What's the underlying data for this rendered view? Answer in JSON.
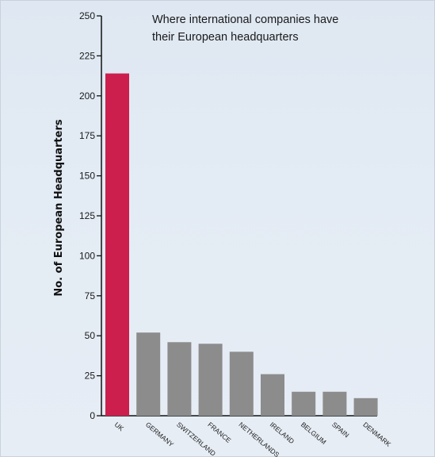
{
  "chart_data": {
    "type": "bar",
    "title_lines": [
      "Where international companies have",
      "their European headquarters"
    ],
    "ylabel": "No. of European Headquarters",
    "xlabel": "",
    "ylim": [
      0,
      250
    ],
    "yticks": [
      0,
      25,
      50,
      75,
      100,
      125,
      150,
      175,
      200,
      225,
      250
    ],
    "categories": [
      "UK",
      "GERMANY",
      "SWITZERLAND",
      "FRANCE",
      "NETHERLANDS",
      "IRELAND",
      "BELGIUM",
      "SPAIN",
      "DENMARK"
    ],
    "values": [
      214,
      52,
      46,
      45,
      40,
      26,
      15,
      15,
      11
    ],
    "highlight_color": "#cc1f4e",
    "bar_color": "#8c8c8c",
    "grid": false
  }
}
